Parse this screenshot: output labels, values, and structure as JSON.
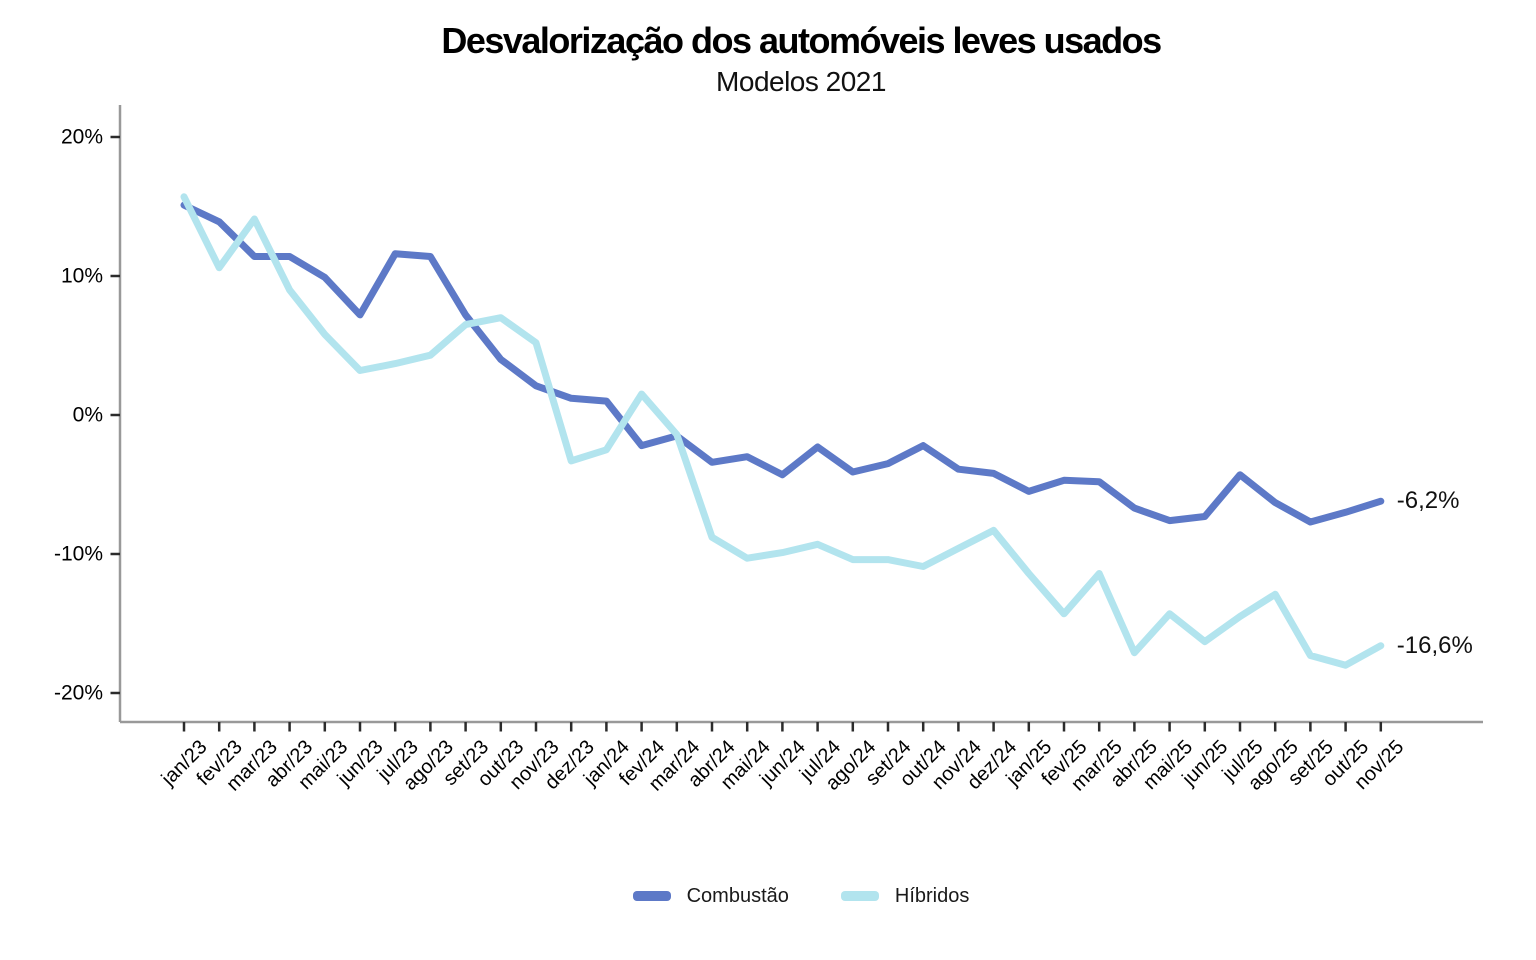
{
  "title": "Desvalorização dos automóveis leves usados",
  "subtitle": "Modelos 2021",
  "colors": {
    "combustao": "#5d79c7",
    "hibridos": "#b2e4ee",
    "axis_line": "#999999",
    "tick_mark": "#2b2b2b",
    "text": "#000000"
  },
  "legend": {
    "items": [
      {
        "label": "Combustão",
        "color": "#5d79c7"
      },
      {
        "label": "Híbridos",
        "color": "#b2e4ee"
      }
    ]
  },
  "annotations": [
    {
      "series": "Combustão",
      "text": "-6,2%"
    },
    {
      "series": "Híbridos",
      "text": "-16,6%"
    }
  ],
  "chart_data": {
    "type": "line",
    "x": [
      "jan/23",
      "fev/23",
      "mar/23",
      "abr/23",
      "mai/23",
      "jun/23",
      "jul/23",
      "ago/23",
      "set/23",
      "out/23",
      "nov/23",
      "dez/23",
      "jan/24",
      "fev/24",
      "mar/24",
      "abr/24",
      "mai/24",
      "jun/24",
      "jul/24",
      "ago/24",
      "set/24",
      "out/24",
      "nov/24",
      "dez/24",
      "jan/25",
      "fev/25",
      "mar/25",
      "abr/25",
      "mai/25",
      "jun/25",
      "jul/25",
      "ago/25",
      "set/25",
      "out/25",
      "nov/25"
    ],
    "series": [
      {
        "name": "Combustão",
        "color": "#5d79c7",
        "values": [
          15.1,
          13.9,
          11.4,
          11.4,
          9.9,
          7.2,
          11.6,
          11.4,
          7.2,
          4.0,
          2.1,
          1.2,
          1.0,
          -2.2,
          -1.5,
          -3.4,
          -3.0,
          -4.3,
          -2.3,
          -4.1,
          -3.5,
          -2.2,
          -3.9,
          -4.2,
          -5.5,
          -4.7,
          -4.8,
          -6.7,
          -7.6,
          -7.3,
          -4.3,
          -6.3,
          -7.7,
          -7.0,
          -6.2
        ]
      },
      {
        "name": "Híbridos",
        "color": "#b2e4ee",
        "values": [
          15.7,
          10.6,
          14.1,
          9.0,
          5.8,
          3.2,
          3.7,
          4.3,
          6.5,
          7.0,
          5.2,
          -3.3,
          -2.5,
          1.5,
          -1.4,
          -8.8,
          -10.3,
          -9.9,
          -9.3,
          -10.4,
          -10.4,
          -10.9,
          -9.6,
          -8.3,
          -11.4,
          -14.3,
          -11.4,
          -17.1,
          -14.3,
          -16.3,
          -14.5,
          -12.9,
          -17.3,
          -18.0,
          -16.6
        ]
      }
    ],
    "ylim": [
      -22,
      22.3
    ],
    "yticks": [
      20,
      10,
      0,
      -10,
      -20
    ],
    "ytick_labels": [
      "20%",
      "10%",
      "0%",
      "-10%",
      "-20%"
    ],
    "xtick_rotation_deg": 45,
    "grid": false,
    "legend_position": "bottom",
    "end_labels": [
      "-6,2%",
      "-16,6%"
    ]
  }
}
